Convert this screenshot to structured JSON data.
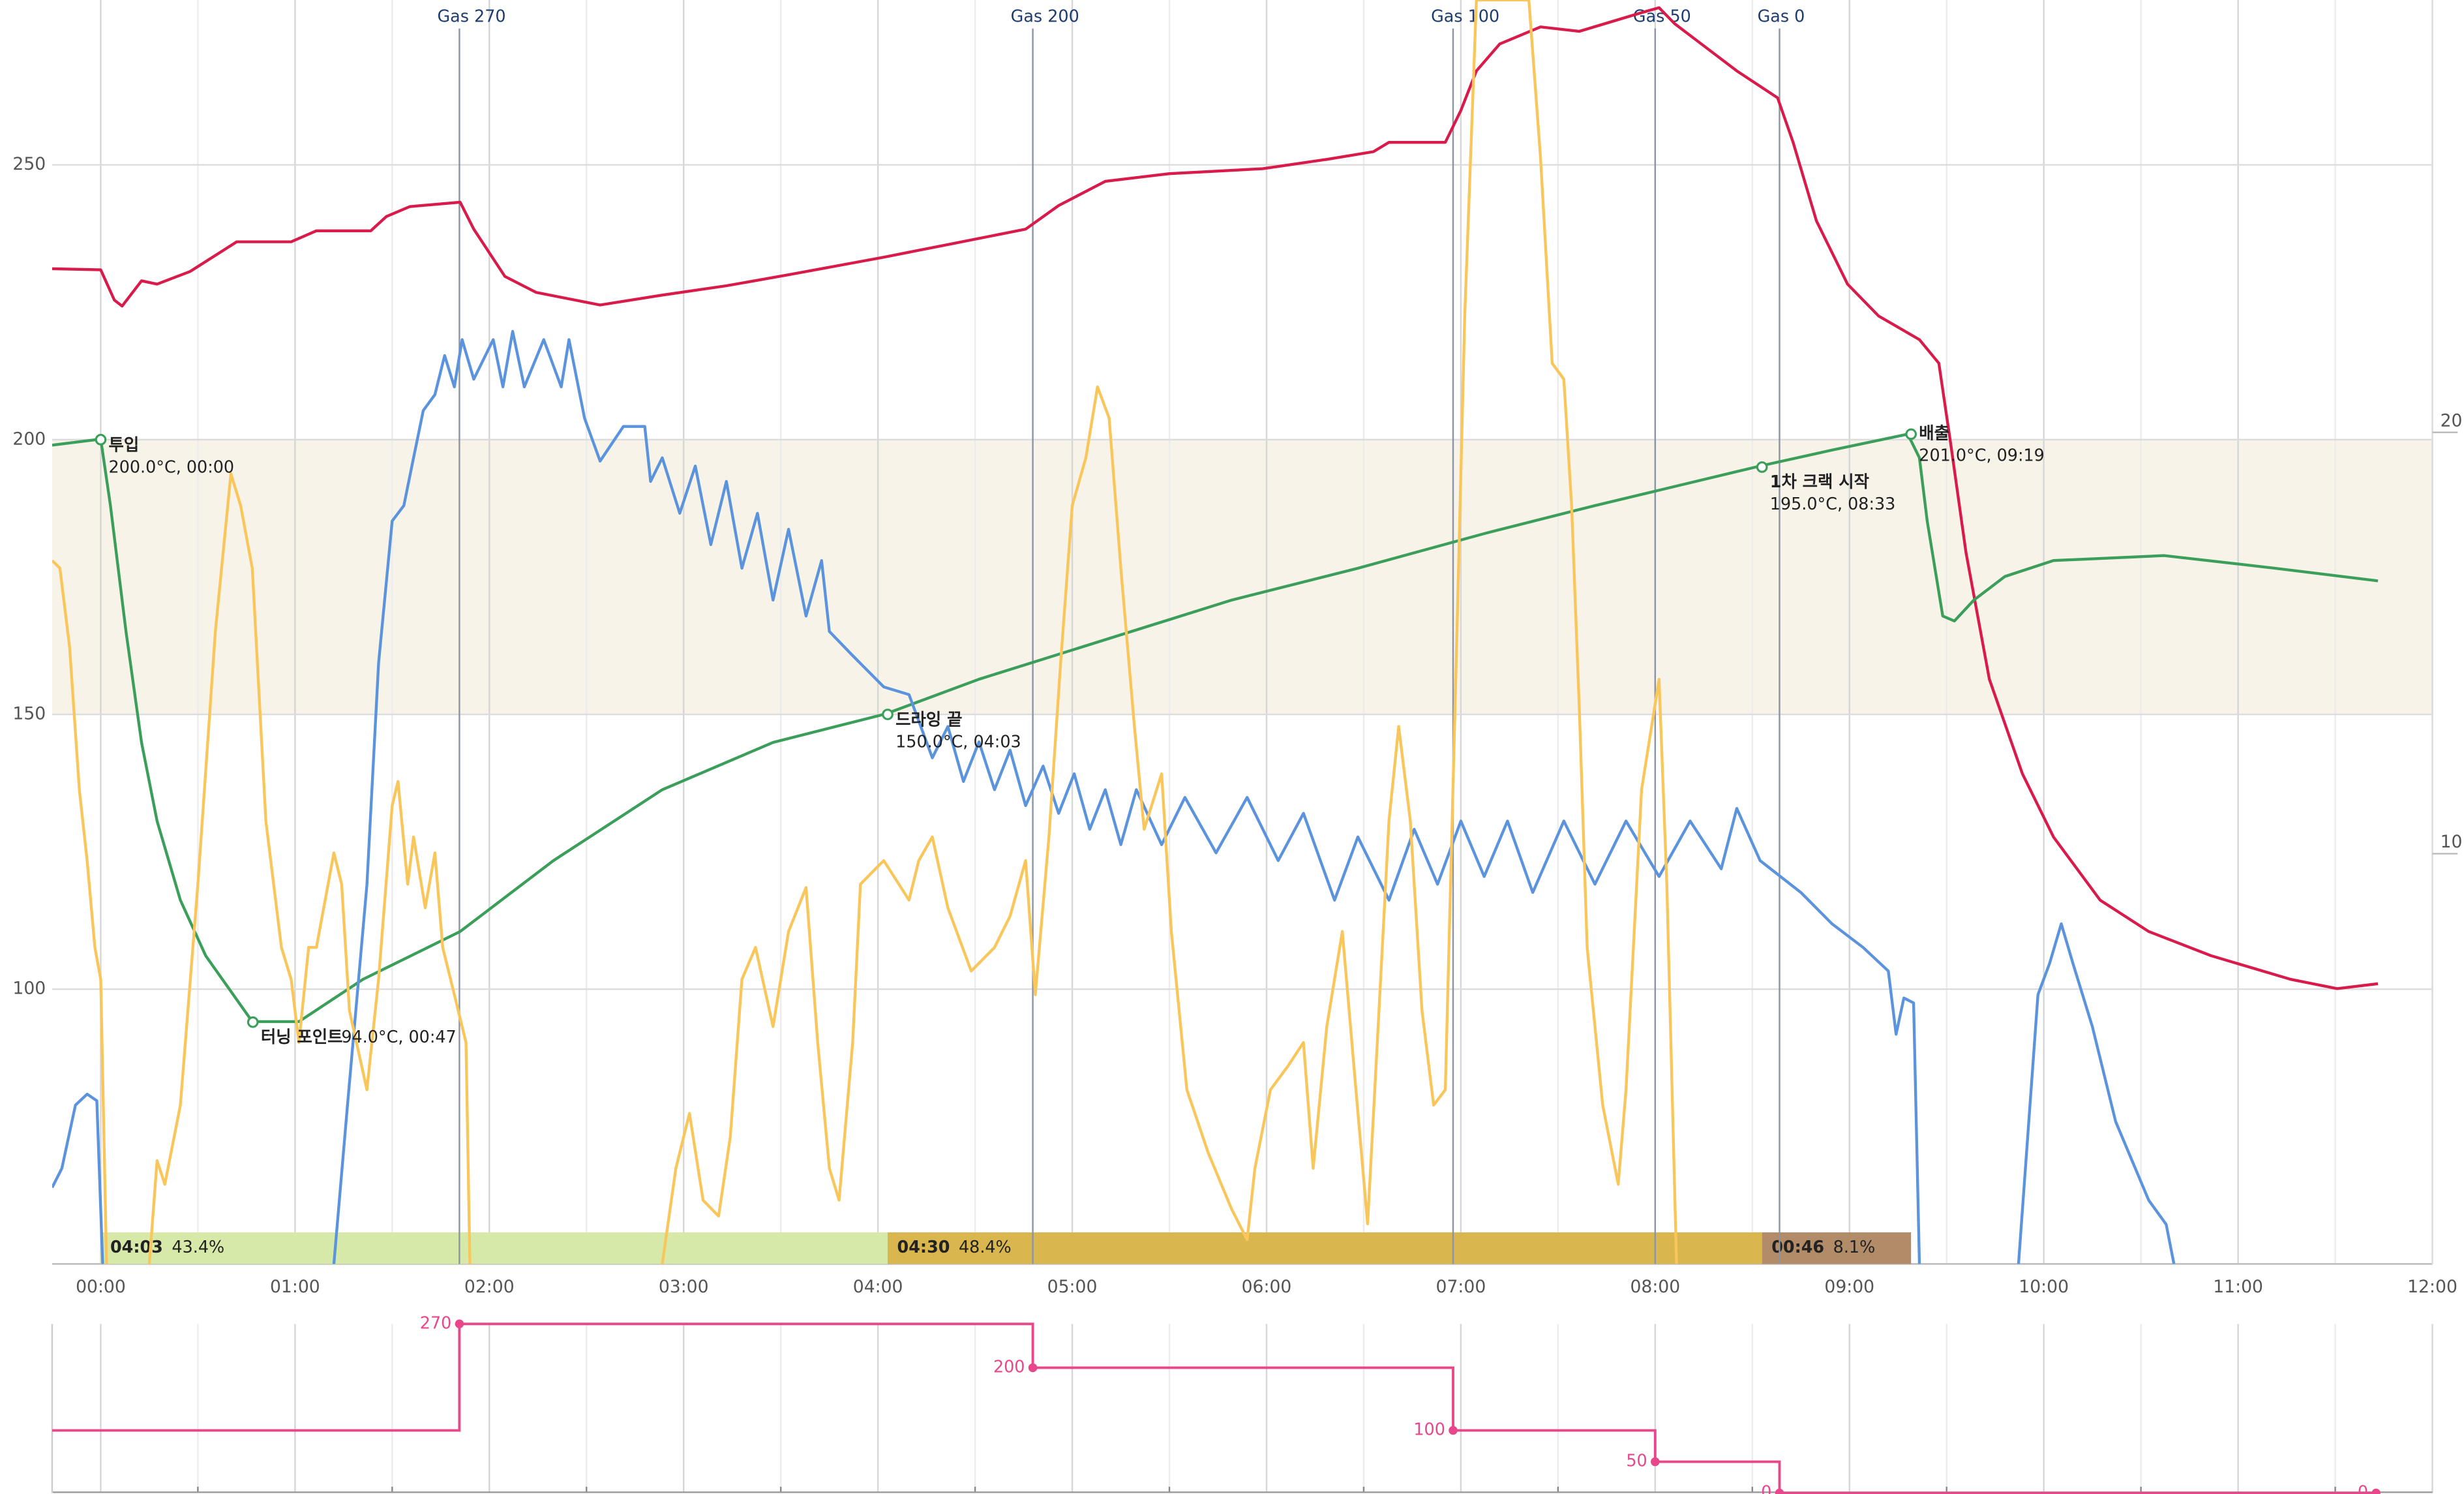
{
  "chart_data": [
    {
      "type": "line",
      "xlim": [
        -0.25,
        12
      ],
      "ylim": [
        50,
        280
      ],
      "y2lim": [
        0,
        30
      ],
      "xticks": [
        {
          "value": 0,
          "label": "00:00"
        },
        {
          "value": 1,
          "label": "01:00"
        },
        {
          "value": 2,
          "label": "02:00"
        },
        {
          "value": 3,
          "label": "03:00"
        },
        {
          "value": 4,
          "label": "04:00"
        },
        {
          "value": 5,
          "label": "05:00"
        },
        {
          "value": 6,
          "label": "06:00"
        },
        {
          "value": 7,
          "label": "07:00"
        },
        {
          "value": 8,
          "label": "08:00"
        },
        {
          "value": 9,
          "label": "09:00"
        },
        {
          "value": 10,
          "label": "10:00"
        },
        {
          "value": 11,
          "label": "11:00"
        },
        {
          "value": 12,
          "label": "12:00"
        }
      ],
      "yticks": [
        100,
        150,
        200,
        250
      ],
      "y2ticks": [
        10,
        20
      ],
      "grid": true,
      "highlight_range": [
        150,
        200
      ],
      "highlight_color": "#f7f3e9",
      "series": [
        {
          "color": "#d81b4a",
          "x": [
            -0.25,
            0,
            0.07,
            0.11,
            0.21,
            0.29,
            0.46,
            0.7,
            0.98,
            1.11,
            1.39,
            1.47,
            1.59,
            1.85,
            1.92,
            2.08,
            2.24,
            2.57,
            2.89,
            3.22,
            3.54,
            4.03,
            4.36,
            4.76,
            4.93,
            5.17,
            5.5,
            5.98,
            6.31,
            6.55,
            6.63,
            6.92,
            7.0,
            7.08,
            7.2,
            7.41,
            7.61,
            7.93,
            8.02,
            8.1,
            8.26,
            8.42,
            8.63,
            8.71,
            8.83,
            8.99,
            9.15,
            9.36,
            9.46,
            9.52,
            9.6,
            9.72,
            9.89,
            10.05,
            10.29,
            10.54,
            10.86,
            11.27,
            11.51,
            11.72
          ],
          "values": [
            231.1,
            230.9,
            225.4,
            224.3,
            228.9,
            228.3,
            230.6,
            236.0,
            236.0,
            238.0,
            238.0,
            240.6,
            242.4,
            243.2,
            238.3,
            229.7,
            226.8,
            224.5,
            226.3,
            228.0,
            230.0,
            233.2,
            235.5,
            238.3,
            242.6,
            247.0,
            248.4,
            249.3,
            251.0,
            252.4,
            254.1,
            254.1,
            259.9,
            267.1,
            272.0,
            275.1,
            274.3,
            277.7,
            278.6,
            275.7,
            271.4,
            267.1,
            262.2,
            254.1,
            239.8,
            228.3,
            222.5,
            218.2,
            213.9,
            199.5,
            179.4,
            156.4,
            139.2,
            127.7,
            116.2,
            110.5,
            106.1,
            101.8,
            100.1,
            101.0
          ]
        },
        {
          "color": "#3b9e5a",
          "x": [
            -0.25,
            0,
            0.05,
            0.13,
            0.21,
            0.29,
            0.41,
            0.54,
            0.78,
            1.02,
            1.35,
            1.85,
            2.33,
            2.89,
            3.46,
            4.04,
            4.52,
            5.17,
            5.82,
            6.47,
            7.12,
            7.69,
            8.54,
            8.91,
            9.3,
            9.36,
            9.4,
            9.48,
            9.54,
            9.64,
            9.8,
            10.05,
            10.62,
            11.19,
            11.72
          ],
          "values": [
            199.0,
            200.1,
            188.0,
            165.1,
            144.9,
            130.6,
            116.2,
            106.1,
            94.1,
            94.1,
            101.8,
            110.5,
            123.4,
            136.3,
            144.9,
            150.1,
            156.4,
            163.6,
            170.8,
            176.6,
            182.9,
            188.0,
            195.2,
            198.1,
            201.0,
            196.7,
            185.2,
            167.9,
            167.0,
            170.8,
            175.1,
            178.0,
            178.9,
            176.6,
            174.3
          ]
        },
        {
          "color": "#5b93dc",
          "x": [
            -0.25,
            -0.2,
            -0.13,
            -0.07,
            -0.02,
            0.01,
            1.1,
            1.2,
            1.27,
            1.37,
            1.43,
            1.5,
            1.56,
            1.61,
            1.66,
            1.72,
            1.77,
            1.82,
            1.86,
            1.92,
            2.02,
            2.07,
            2.12,
            2.18,
            2.28,
            2.37,
            2.41,
            2.49,
            2.57,
            2.69,
            2.8,
            2.83,
            2.89,
            2.98,
            3.06,
            3.14,
            3.22,
            3.3,
            3.38,
            3.46,
            3.54,
            3.63,
            3.71,
            3.75,
            3.87,
            4.03,
            4.16,
            4.28,
            4.36,
            4.44,
            4.52,
            4.6,
            4.68,
            4.76,
            4.85,
            4.93,
            5.01,
            5.09,
            5.17,
            5.25,
            5.33,
            5.46,
            5.58,
            5.74,
            5.9,
            6.06,
            6.19,
            6.35,
            6.47,
            6.63,
            6.76,
            6.88,
            7.0,
            7.12,
            7.24,
            7.37,
            7.53,
            7.69,
            7.85,
            8.02,
            8.18,
            8.34,
            8.42,
            8.54,
            8.75,
            8.91,
            9.07,
            9.2,
            9.24,
            9.28,
            9.33,
            9.36,
            9.6,
            9.87,
            9.97,
            10.03,
            10.09,
            10.15,
            10.25,
            10.37,
            10.54,
            10.63,
            10.67
          ],
          "values": [
            63.9,
            67.4,
            78.9,
            80.9,
            79.7,
            50,
            null,
            50,
            78.9,
            119.0,
            159.3,
            185.2,
            188.0,
            196.7,
            205.3,
            208.2,
            215.3,
            209.6,
            218.2,
            211.0,
            218.2,
            209.6,
            219.7,
            209.6,
            218.2,
            209.6,
            218.2,
            203.9,
            196.1,
            202.4,
            202.4,
            192.4,
            196.7,
            186.6,
            195.2,
            180.9,
            192.4,
            176.6,
            186.6,
            170.8,
            183.7,
            167.9,
            178.0,
            165.1,
            160.7,
            155.0,
            153.6,
            142.1,
            147.8,
            137.8,
            145.0,
            136.3,
            143.5,
            133.4,
            140.6,
            132.0,
            139.2,
            129.1,
            136.3,
            126.3,
            136.3,
            126.3,
            134.9,
            124.8,
            134.9,
            123.4,
            132.0,
            116.2,
            127.7,
            116.2,
            129.1,
            119.1,
            130.6,
            120.5,
            130.6,
            117.6,
            130.6,
            119.1,
            130.6,
            120.5,
            130.6,
            121.9,
            132.9,
            123.4,
            117.6,
            111.9,
            107.6,
            103.3,
            91.8,
            98.4,
            97.5,
            50,
            null,
            50,
            99.0,
            104.7,
            111.9,
            104.7,
            93.2,
            75.9,
            61.6,
            57.2,
            50
          ]
        },
        {
          "color": "#f9c65c",
          "x": [
            -0.25,
            -0.21,
            -0.16,
            -0.11,
            -0.07,
            -0.03,
            0,
            0.03,
            0.15,
            0.25,
            0.29,
            0.33,
            0.41,
            0.5,
            0.59,
            0.67,
            0.72,
            0.78,
            0.85,
            0.93,
            0.98,
            1.02,
            1.07,
            1.11,
            1.2,
            1.24,
            1.28,
            1.37,
            1.43,
            1.5,
            1.53,
            1.58,
            1.61,
            1.67,
            1.72,
            1.76,
            1.82,
            1.88,
            1.9,
            2.5,
            2.89,
            2.96,
            3.03,
            3.1,
            3.18,
            3.24,
            3.3,
            3.37,
            3.46,
            3.54,
            3.63,
            3.69,
            3.75,
            3.8,
            3.87,
            3.91,
            3.99,
            4.03,
            4.16,
            4.21,
            4.28,
            4.36,
            4.48,
            4.6,
            4.68,
            4.76,
            4.81,
            4.88,
            4.94,
            5.0,
            5.07,
            5.13,
            5.19,
            5.25,
            5.32,
            5.37,
            5.46,
            5.51,
            5.59,
            5.7,
            5.82,
            5.9,
            5.94,
            6.02,
            6.11,
            6.19,
            6.24,
            6.31,
            6.39,
            6.46,
            6.52,
            6.57,
            6.63,
            6.68,
            6.74,
            6.8,
            6.86,
            6.92,
            6.98,
            7.02,
            7.08,
            7.35,
            7.41,
            7.47,
            7.53,
            7.57,
            7.61,
            7.65,
            7.73,
            7.81,
            7.85,
            7.93,
            8.02,
            8.06,
            8.11
          ],
          "values": [
            178.0,
            176.6,
            162.2,
            136.3,
            123.4,
            107.6,
            101.8,
            50,
            null,
            50,
            68.8,
            64.5,
            78.9,
            119.1,
            165.1,
            193.8,
            188.0,
            176.6,
            130.6,
            107.6,
            101.8,
            90.3,
            107.6,
            107.6,
            124.8,
            119.1,
            96.1,
            81.7,
            101.8,
            133.4,
            137.8,
            119.1,
            127.7,
            114.8,
            124.8,
            107.6,
            99.0,
            90.3,
            50,
            null,
            50,
            67.4,
            77.4,
            61.6,
            58.7,
            73.1,
            101.8,
            107.6,
            93.2,
            110.5,
            118.5,
            90.3,
            67.4,
            61.6,
            90.3,
            119.1,
            122.0,
            123.4,
            116.2,
            123.4,
            127.7,
            114.8,
            103.3,
            107.6,
            113.3,
            123.4,
            99.0,
            127.7,
            159.3,
            188.0,
            196.7,
            209.6,
            203.9,
            176.6,
            147.8,
            129.1,
            139.2,
            110.5,
            81.7,
            70.2,
            60.0,
            54.4,
            67.4,
            81.7,
            86.0,
            90.3,
            67.4,
            93.2,
            110.5,
            81.7,
            57.3,
            90.3,
            130.6,
            147.8,
            130.6,
            96.1,
            78.9,
            81.7,
            165.1,
            222.5,
            280,
            280,
            251.3,
            213.9,
            211.0,
            188.0,
            150.7,
            107.6,
            78.9,
            64.5,
            81.7,
            136.3,
            156.4,
            119.1,
            50
          ]
        }
      ],
      "events": [
        {
          "label": "투입",
          "detail": "200.0°C, 00:00",
          "x": 0,
          "value": 200
        },
        {
          "label": "터닝 포인트",
          "detail": "94.0°C, 00:47",
          "x": 0.783,
          "value": 94
        },
        {
          "label": "드라잉 끝",
          "detail": "150.0°C, 04:03",
          "x": 4.05,
          "value": 150
        },
        {
          "label": "1차 크랙 시작",
          "detail": "195.0°C, 08:33",
          "x": 8.55,
          "value": 195
        },
        {
          "label": "배출",
          "detail": "201.0°C, 09:19",
          "x": 9.317,
          "value": 201
        }
      ],
      "gas_markers": [
        {
          "label": "Gas 270",
          "x": 1.846
        },
        {
          "label": "Gas 200",
          "x": 4.797
        },
        {
          "label": "Gas 100",
          "x": 6.96
        },
        {
          "label": "Gas 50",
          "x": 8.0
        },
        {
          "label": "Gas 0",
          "x": 8.64
        }
      ],
      "phases": [
        {
          "start": 0,
          "end": 4.05,
          "color": "#d7e9a8",
          "duration": "04:03",
          "value": 43.4,
          "value_label": "43.4%"
        },
        {
          "start": 4.05,
          "end": 8.55,
          "color": "#d9b74e",
          "duration": "04:30",
          "value": 48.4,
          "value_label": "48.4%"
        },
        {
          "start": 8.55,
          "end": 9.317,
          "color": "#b28c68",
          "duration": "00:46",
          "value": 8.1,
          "value_label": "8.1%"
        }
      ]
    },
    {
      "type": "step",
      "xlim": [
        -0.25,
        12
      ],
      "ylim": [
        0,
        290
      ],
      "color": "#e8478b",
      "x": [
        -0.25,
        1.846,
        4.797,
        6.96,
        8.0,
        8.64,
        11.71
      ],
      "values": [
        100,
        270,
        200,
        100,
        50,
        0,
        0
      ]
    }
  ]
}
